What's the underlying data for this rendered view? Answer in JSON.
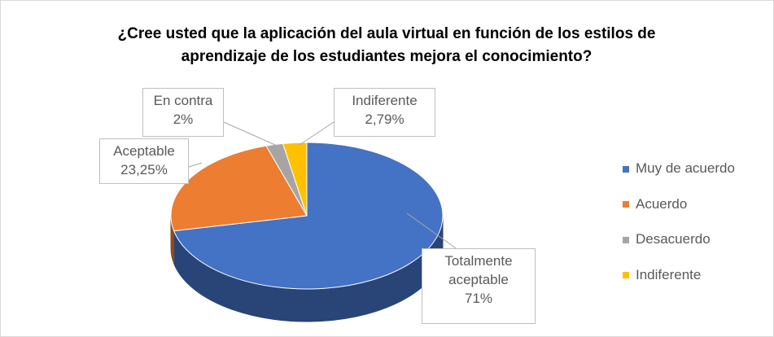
{
  "chart_data": {
    "type": "pie",
    "title": "¿Cree usted que la aplicación del aula virtual en función de los estilos de aprendizaje de los estudiantes mejora el conocimiento?",
    "categories": [
      "Muy de acuerdo",
      "Acuerdo",
      "Desacuerdo",
      "Indiferente"
    ],
    "values": [
      71,
      23.25,
      2,
      2.79
    ],
    "value_labels": [
      "71%",
      "23,25%",
      "2%",
      "2,79%"
    ],
    "label_names": [
      "Totalmente aceptable",
      "Aceptable",
      "En contra",
      "Indiferente"
    ],
    "colors": [
      "#4472c4",
      "#ed7d31",
      "#a5a5a5",
      "#ffc000"
    ],
    "legend": "right"
  }
}
